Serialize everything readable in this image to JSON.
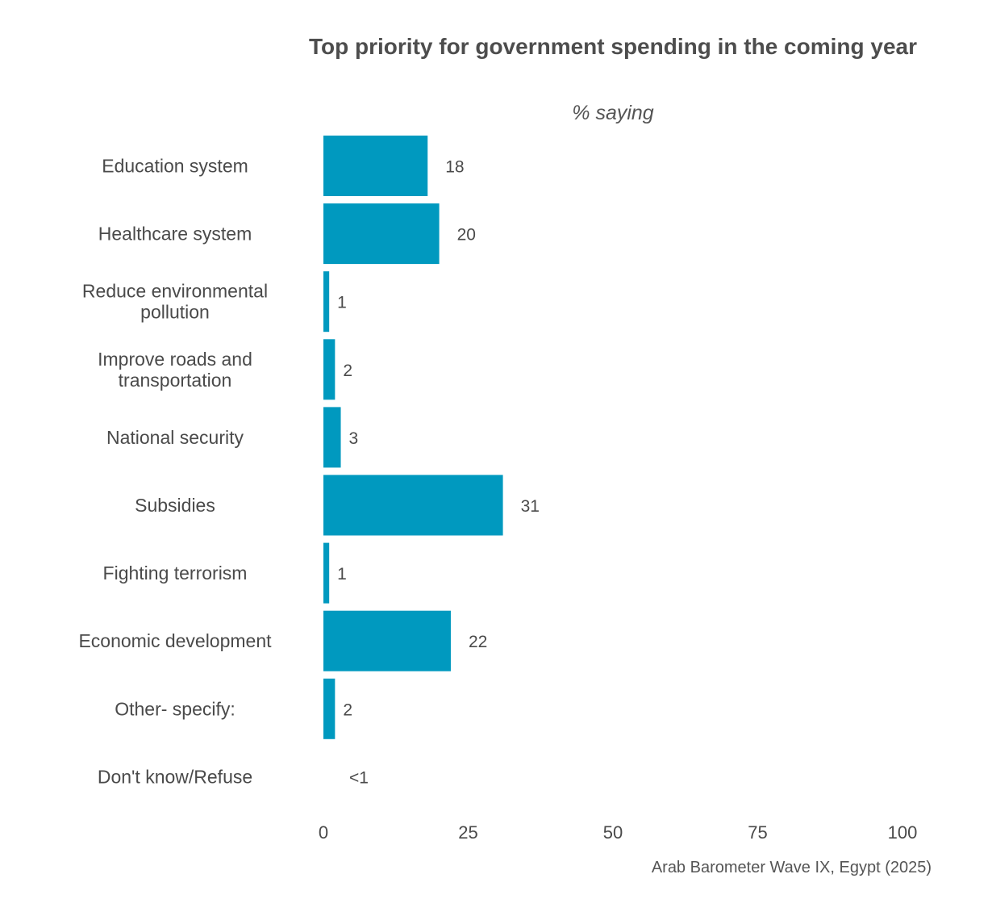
{
  "chart_data": {
    "type": "bar",
    "orientation": "horizontal",
    "title": "Top priority for government spending in the coming year",
    "subtitle": "% saying",
    "categories": [
      "Education system",
      "Healthcare system",
      "Reduce environmental pollution",
      "Improve roads and transportation",
      "National security",
      "Subsidies",
      "Fighting terrorism",
      "Economic development",
      "Other- specify:",
      "Don't know/Refuse"
    ],
    "values": [
      18,
      20,
      1,
      2,
      3,
      31,
      1,
      22,
      2,
      0.3
    ],
    "value_labels": [
      "18",
      "20",
      "1",
      "2",
      "3",
      "31",
      "1",
      "22",
      "2",
      "<1"
    ],
    "xlim": [
      0,
      100
    ],
    "xticks": [
      0,
      25,
      50,
      75,
      100
    ],
    "grid": false,
    "legend": "none",
    "bar_color": "#0099bf",
    "caption": "Arab Barometer Wave IX, Egypt (2025)"
  }
}
